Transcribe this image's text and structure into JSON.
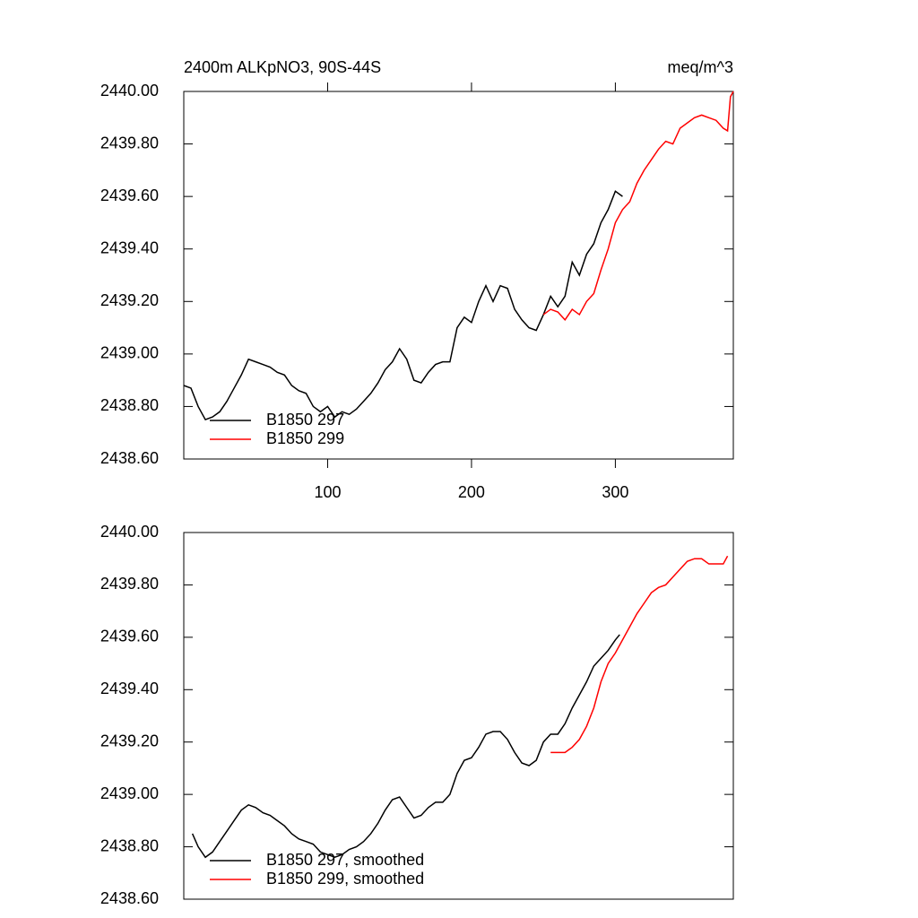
{
  "chart_data": [
    {
      "type": "line",
      "title": "2400m ALKpNO3, 90S-44S",
      "units": "meq/m^3",
      "xlim": [
        0,
        382
      ],
      "xticks": [
        100,
        200,
        300
      ],
      "ylim": [
        2438.6,
        2440.0
      ],
      "yticks": [
        {
          "value": 2438.6,
          "label": "2438.60"
        },
        {
          "value": 2438.8,
          "label": "2438.80"
        },
        {
          "value": 2439.0,
          "label": "2439.00"
        },
        {
          "value": 2439.2,
          "label": "2439.20"
        },
        {
          "value": 2439.4,
          "label": "2439.40"
        },
        {
          "value": 2439.6,
          "label": "2439.60"
        },
        {
          "value": 2439.8,
          "label": "2439.80"
        },
        {
          "value": 2440.0,
          "label": "2440.00"
        }
      ],
      "series": [
        {
          "name": "B1850 297",
          "color": "#000000",
          "x": [
            0,
            5,
            10,
            15,
            20,
            25,
            30,
            35,
            40,
            45,
            50,
            55,
            60,
            65,
            70,
            75,
            80,
            85,
            90,
            95,
            100,
            105,
            110,
            115,
            120,
            125,
            130,
            135,
            140,
            145,
            150,
            155,
            160,
            165,
            170,
            175,
            180,
            185,
            190,
            195,
            200,
            205,
            210,
            215,
            220,
            225,
            230,
            235,
            240,
            245,
            250,
            255,
            260,
            265,
            270,
            275,
            280,
            285,
            290,
            295,
            300,
            305
          ],
          "values": [
            2438.88,
            2438.87,
            2438.8,
            2438.75,
            2438.76,
            2438.78,
            2438.82,
            2438.87,
            2438.92,
            2438.98,
            2438.97,
            2438.96,
            2438.95,
            2438.93,
            2438.92,
            2438.88,
            2438.86,
            2438.85,
            2438.8,
            2438.78,
            2438.8,
            2438.76,
            2438.78,
            2438.77,
            2438.79,
            2438.82,
            2438.85,
            2438.89,
            2438.94,
            2438.97,
            2439.02,
            2438.98,
            2438.9,
            2438.89,
            2438.93,
            2438.96,
            2438.97,
            2438.97,
            2439.1,
            2439.14,
            2439.12,
            2439.2,
            2439.26,
            2439.2,
            2439.26,
            2439.25,
            2439.17,
            2439.13,
            2439.1,
            2439.09,
            2439.15,
            2439.22,
            2439.18,
            2439.22,
            2439.35,
            2439.3,
            2439.38,
            2439.42,
            2439.5,
            2439.55,
            2439.62,
            2439.6
          ]
        },
        {
          "name": "B1850 299",
          "color": "#ff0000",
          "x": [
            250,
            255,
            260,
            265,
            270,
            275,
            280,
            285,
            290,
            295,
            300,
            305,
            310,
            315,
            320,
            325,
            330,
            335,
            340,
            345,
            350,
            355,
            360,
            365,
            370,
            375,
            378,
            380,
            382
          ],
          "values": [
            2439.15,
            2439.17,
            2439.16,
            2439.13,
            2439.17,
            2439.15,
            2439.2,
            2439.23,
            2439.32,
            2439.4,
            2439.5,
            2439.55,
            2439.58,
            2439.65,
            2439.7,
            2439.74,
            2439.78,
            2439.81,
            2439.8,
            2439.86,
            2439.88,
            2439.9,
            2439.91,
            2439.9,
            2439.89,
            2439.86,
            2439.85,
            2439.98,
            2440.0
          ]
        }
      ]
    },
    {
      "type": "line",
      "xlim": [
        0,
        382
      ],
      "ylim": [
        2438.6,
        2440.0
      ],
      "yticks": [
        {
          "value": 2438.6,
          "label": "2438.60"
        },
        {
          "value": 2438.8,
          "label": "2438.80"
        },
        {
          "value": 2439.0,
          "label": "2439.00"
        },
        {
          "value": 2439.2,
          "label": "2439.20"
        },
        {
          "value": 2439.4,
          "label": "2439.40"
        },
        {
          "value": 2439.6,
          "label": "2439.60"
        },
        {
          "value": 2439.8,
          "label": "2439.80"
        },
        {
          "value": 2440.0,
          "label": "2440.00"
        }
      ],
      "series": [
        {
          "name": "B1850 297, smoothed",
          "color": "#000000",
          "x": [
            6,
            10,
            15,
            20,
            25,
            30,
            35,
            40,
            45,
            50,
            55,
            60,
            65,
            70,
            75,
            80,
            85,
            90,
            95,
            100,
            105,
            110,
            115,
            120,
            125,
            130,
            135,
            140,
            145,
            150,
            155,
            160,
            165,
            170,
            175,
            180,
            185,
            190,
            195,
            200,
            205,
            210,
            215,
            220,
            225,
            230,
            235,
            240,
            245,
            250,
            255,
            260,
            265,
            270,
            275,
            280,
            285,
            290,
            295,
            300,
            303
          ],
          "values": [
            2438.85,
            2438.8,
            2438.76,
            2438.78,
            2438.82,
            2438.86,
            2438.9,
            2438.94,
            2438.96,
            2438.95,
            2438.93,
            2438.92,
            2438.9,
            2438.88,
            2438.85,
            2438.83,
            2438.82,
            2438.81,
            2438.78,
            2438.77,
            2438.76,
            2438.77,
            2438.79,
            2438.8,
            2438.82,
            2438.85,
            2438.89,
            2438.94,
            2438.98,
            2438.99,
            2438.95,
            2438.91,
            2438.92,
            2438.95,
            2438.97,
            2438.97,
            2439.0,
            2439.08,
            2439.13,
            2439.14,
            2439.18,
            2439.23,
            2439.24,
            2439.24,
            2439.21,
            2439.16,
            2439.12,
            2439.11,
            2439.13,
            2439.2,
            2439.23,
            2439.23,
            2439.27,
            2439.33,
            2439.38,
            2439.43,
            2439.49,
            2439.52,
            2439.55,
            2439.59,
            2439.61
          ]
        },
        {
          "name": "B1850 299, smoothed",
          "color": "#ff0000",
          "x": [
            255,
            260,
            265,
            270,
            275,
            280,
            285,
            290,
            295,
            300,
            305,
            310,
            315,
            320,
            325,
            330,
            335,
            340,
            345,
            350,
            355,
            360,
            365,
            370,
            375,
            378
          ],
          "values": [
            2439.16,
            2439.16,
            2439.16,
            2439.18,
            2439.21,
            2439.26,
            2439.33,
            2439.43,
            2439.5,
            2439.54,
            2439.59,
            2439.64,
            2439.69,
            2439.73,
            2439.77,
            2439.79,
            2439.8,
            2439.83,
            2439.86,
            2439.89,
            2439.9,
            2439.9,
            2439.88,
            2439.88,
            2439.88,
            2439.91
          ]
        }
      ]
    }
  ]
}
